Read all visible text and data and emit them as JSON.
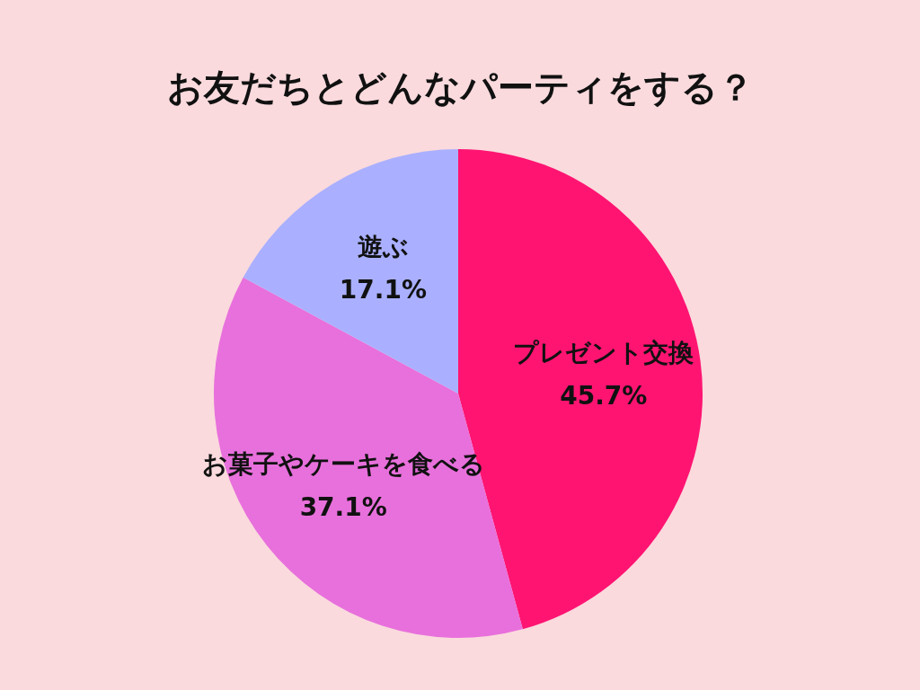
{
  "chart_data": {
    "type": "pie",
    "title": "お友だちとどんなパーティをする？",
    "categories": [
      "プレゼント交換",
      "お菓子やケーキを食べる",
      "遊ぶ"
    ],
    "values": [
      45.7,
      37.1,
      17.1
    ],
    "colors": [
      "#ff1472",
      "#e870dc",
      "#aab0ff"
    ],
    "value_labels": [
      "45.7%",
      "37.1%",
      "17.1%"
    ]
  }
}
